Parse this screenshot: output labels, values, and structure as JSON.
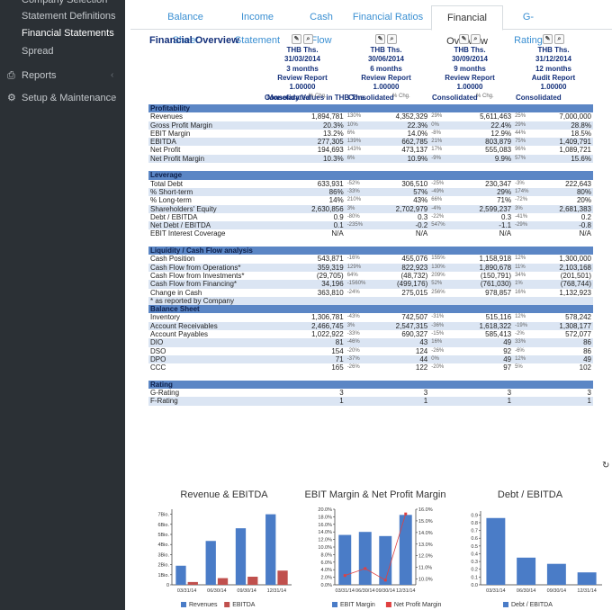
{
  "sidebar": {
    "items": [
      {
        "label": "Company Selection",
        "active": false
      },
      {
        "label": "Statement Definitions",
        "active": false
      },
      {
        "label": "Financial Statements",
        "active": true
      },
      {
        "label": "Spread",
        "active": false
      },
      {
        "label": "Reports",
        "active": false
      },
      {
        "label": "Setup & Maintenance",
        "active": false
      }
    ]
  },
  "tabs": [
    "Balance Sheet",
    "Income Statement",
    "Cash Flow",
    "Financial Ratios",
    "Financial Overview",
    "G-Rating"
  ],
  "overview": {
    "title": "Financial Overview",
    "monetary_label": "Monetary Values in THB Ths.",
    "pct_label": "% Chg.",
    "columns": [
      {
        "unit": "THB Ths.",
        "date": "31/03/2014",
        "period": "3 months",
        "report": "Review Report",
        "factor": "1.00000",
        "scope": "Consolidated"
      },
      {
        "unit": "THB Ths.",
        "date": "30/06/2014",
        "period": "6 months",
        "report": "Review Report",
        "factor": "1.00000",
        "scope": "Consolidated"
      },
      {
        "unit": "THB Ths.",
        "date": "30/09/2014",
        "period": "9 months",
        "report": "Review Report",
        "factor": "1.00000",
        "scope": "Consolidated"
      },
      {
        "unit": "THB Ths.",
        "date": "31/12/2014",
        "period": "12 months",
        "report": "Audit Report",
        "factor": "1.00000",
        "scope": "Consolidated"
      }
    ],
    "rows": [
      {
        "type": "section",
        "label": "Profitability"
      },
      {
        "label": "Revenues",
        "v": [
          "1,894,781",
          "4,352,329",
          "5,611,463",
          "7,000,000"
        ],
        "p": [
          "130%",
          "29%",
          "25%"
        ]
      },
      {
        "label": "Gross Profit Margin",
        "v": [
          "20.3%",
          "22.3%",
          "22.4%",
          "28.8%"
        ],
        "p": [
          "10%",
          "0%",
          "29%"
        ]
      },
      {
        "label": "EBIT Margin",
        "v": [
          "13.2%",
          "14.0%",
          "12.9%",
          "18.5%"
        ],
        "p": [
          "6%",
          "-8%",
          "44%"
        ]
      },
      {
        "label": "EBITDA",
        "v": [
          "277,305",
          "662,785",
          "803,879",
          "1,409,791"
        ],
        "p": [
          "139%",
          "21%",
          "75%"
        ]
      },
      {
        "label": "Net Profit",
        "v": [
          "194,693",
          "473,137",
          "555,083",
          "1,089,721"
        ],
        "p": [
          "143%",
          "17%",
          "96%"
        ]
      },
      {
        "label": "Net Profit Margin",
        "v": [
          "10.3%",
          "10.9%",
          "9.9%",
          "15.6%"
        ],
        "p": [
          "6%",
          "-9%",
          "57%"
        ]
      },
      {
        "type": "blank"
      },
      {
        "type": "section",
        "label": "Leverage"
      },
      {
        "label": "Total Debt",
        "v": [
          "633,931",
          "306,510",
          "230,347",
          "222,643"
        ],
        "p": [
          "-52%",
          "-25%",
          "-3%"
        ]
      },
      {
        "label": "% Short-term",
        "v": [
          "86%",
          "57%",
          "29%",
          "80%"
        ],
        "p": [
          "-33%",
          "-49%",
          "174%"
        ]
      },
      {
        "label": "% Long-term",
        "v": [
          "14%",
          "43%",
          "71%",
          "20%"
        ],
        "p": [
          "210%",
          "66%",
          "-72%"
        ]
      },
      {
        "label": "Shareholders' Equity",
        "v": [
          "2,630,856",
          "2,702,979",
          "2,599,237",
          "2,681,383"
        ],
        "p": [
          "3%",
          "-4%",
          "3%"
        ]
      },
      {
        "label": "Debt / EBITDA",
        "v": [
          "0.9",
          "0.3",
          "0.3",
          "0.2"
        ],
        "p": [
          "-80%",
          "-22%",
          "-41%"
        ]
      },
      {
        "label": "Net Debt / EBITDA",
        "v": [
          "0.1",
          "-0.2",
          "-1.1",
          "-0.8"
        ],
        "p": [
          "-235%",
          "547%",
          "-29%"
        ]
      },
      {
        "label": "EBIT Interest Coverage",
        "v": [
          "N/A",
          "N/A",
          "N/A",
          "N/A"
        ],
        "p": [
          "",
          "",
          ""
        ]
      },
      {
        "type": "blank"
      },
      {
        "type": "section",
        "label": "Liquidity / Cash Flow analysis"
      },
      {
        "label": "Cash Position",
        "v": [
          "543,871",
          "455,076",
          "1,158,918",
          "1,300,000"
        ],
        "p": [
          "-16%",
          "155%",
          "12%"
        ]
      },
      {
        "label": "Cash Flow from Operations*",
        "v": [
          "359,319",
          "822,923",
          "1,890,678",
          "2,103,168"
        ],
        "p": [
          "129%",
          "130%",
          "11%"
        ]
      },
      {
        "label": "Cash Flow from Investments*",
        "v": [
          "(29,705)",
          "(48,732)",
          "(150,791)",
          "(201,501)"
        ],
        "p": [
          "64%",
          "209%",
          "34%"
        ]
      },
      {
        "label": "Cash Flow from Financing*",
        "v": [
          "34,196",
          "(499,176)",
          "(761,030)",
          "(768,744)"
        ],
        "p": [
          "-1560%",
          "52%",
          "1%"
        ]
      },
      {
        "label": "Change in Cash",
        "v": [
          "363,810",
          "275,015",
          "978,857",
          "1,132,923"
        ],
        "p": [
          "-24%",
          "256%",
          "16%"
        ]
      },
      {
        "label": "* as reported by Company",
        "v": [
          "",
          "",
          "",
          ""
        ],
        "p": [
          "",
          "",
          ""
        ]
      },
      {
        "type": "section",
        "label": "Balance Sheet"
      },
      {
        "label": "Inventory",
        "v": [
          "1,306,781",
          "742,507",
          "515,116",
          "578,242"
        ],
        "p": [
          "-43%",
          "-31%",
          "12%"
        ]
      },
      {
        "label": "Account Receivables",
        "v": [
          "2,466,745",
          "2,547,315",
          "1,618,322",
          "1,308,177"
        ],
        "p": [
          "3%",
          "-36%",
          "-19%"
        ]
      },
      {
        "label": "Account Payables",
        "v": [
          "1,022,922",
          "690,327",
          "585,413",
          "572,077"
        ],
        "p": [
          "-33%",
          "-15%",
          "-2%"
        ]
      },
      {
        "label": "DIO",
        "v": [
          "81",
          "43",
          "49",
          "86"
        ],
        "p": [
          "-46%",
          "16%",
          "33%"
        ]
      },
      {
        "label": "DSO",
        "v": [
          "154",
          "124",
          "92",
          "86"
        ],
        "p": [
          "-20%",
          "-26%",
          "-6%"
        ]
      },
      {
        "label": "DPO",
        "v": [
          "71",
          "44",
          "49",
          "49"
        ],
        "p": [
          "-37%",
          "0%",
          "12%"
        ]
      },
      {
        "label": "CCC",
        "v": [
          "165",
          "122",
          "97",
          "102"
        ],
        "p": [
          "-26%",
          "-20%",
          "5%"
        ]
      },
      {
        "type": "blank"
      },
      {
        "type": "section",
        "label": "Rating"
      },
      {
        "label": "G-Rating",
        "v": [
          "3",
          "3",
          "3",
          "3"
        ],
        "p": [
          "",
          "",
          ""
        ]
      },
      {
        "label": "F-Rating",
        "v": [
          "1",
          "1",
          "1",
          "1"
        ],
        "p": [
          "",
          "",
          ""
        ]
      }
    ]
  },
  "chart_data": [
    {
      "type": "bar",
      "title": "Revenue & EBITDA",
      "categories": [
        "03/31/14",
        "06/30/14",
        "09/30/14",
        "12/31/14"
      ],
      "series": [
        {
          "name": "Revenues",
          "values": [
            1894781,
            4352329,
            5611463,
            7000000
          ],
          "color": "#4a7cc7"
        },
        {
          "name": "EBITDA",
          "values": [
            277305,
            662785,
            803879,
            1409791
          ],
          "color": "#c0504d"
        }
      ],
      "yticks": [
        "0",
        "1Bio.",
        "2Bio.",
        "3Bio.",
        "4Bio.",
        "5Bio.",
        "6Bio.",
        "7Bio."
      ],
      "ylim": [
        0,
        7500000
      ]
    },
    {
      "type": "bar",
      "title": "EBIT Margin & Net Profit Margin",
      "categories": [
        "03/31/14",
        "06/30/14",
        "09/30/14",
        "12/31/14"
      ],
      "series": [
        {
          "name": "EBIT Margin",
          "values": [
            13.2,
            14.0,
            12.9,
            18.5
          ],
          "color": "#4a7cc7",
          "axis": "left"
        },
        {
          "name": "Net Profit Margin",
          "values": [
            10.3,
            10.9,
            9.9,
            15.6
          ],
          "color": "#e04040",
          "axis": "right",
          "kind": "line"
        }
      ],
      "yticks_left": [
        "0.0%",
        "2.0%",
        "4.0%",
        "6.0%",
        "8.0%",
        "10.0%",
        "12.0%",
        "14.0%",
        "16.0%",
        "18.0%",
        "20.0%"
      ],
      "yticks_right": [
        "10.0%",
        "11.0%",
        "12.0%",
        "13.0%",
        "14.0%",
        "15.0%",
        "16.0%"
      ],
      "ylim_left": [
        0,
        20
      ],
      "ylim_right": [
        9.5,
        16
      ]
    },
    {
      "type": "bar",
      "title": "Debt / EBITDA",
      "categories": [
        "03/31/14",
        "06/30/14",
        "09/30/14",
        "12/31/14"
      ],
      "series": [
        {
          "name": "Debt / EBITDA",
          "values": [
            0.86,
            0.35,
            0.27,
            0.16
          ],
          "color": "#4a7cc7"
        }
      ],
      "yticks": [
        "0.0",
        "0.1",
        "0.2",
        "0.3",
        "0.4",
        "0.5",
        "0.6",
        "0.7",
        "0.8",
        "0.9"
      ],
      "ylim": [
        0,
        0.95
      ]
    }
  ]
}
